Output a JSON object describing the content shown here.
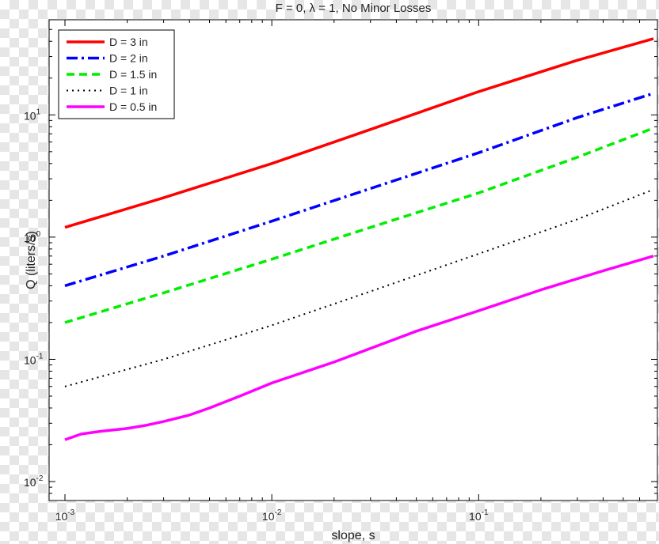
{
  "chart_data": {
    "type": "line",
    "title": "F = 0, λ = 1, No Minor Losses",
    "xlabel": "slope, s",
    "ylabel": "Q (liters/s)",
    "xscale": "log",
    "yscale": "log",
    "xlim": [
      0.001,
      0.7
    ],
    "ylim": [
      0.007,
      60
    ],
    "grid": false,
    "legend_position": "top-left",
    "x_ticks": [
      {
        "value": 0.001,
        "base": "10",
        "exp": "-3"
      },
      {
        "value": 0.01,
        "base": "10",
        "exp": "-2"
      },
      {
        "value": 0.1,
        "base": "10",
        "exp": "-1"
      }
    ],
    "y_ticks": [
      {
        "value": 0.01,
        "base": "10",
        "exp": "-2"
      },
      {
        "value": 0.1,
        "base": "10",
        "exp": "-1"
      },
      {
        "value": 1,
        "base": "10",
        "exp": "0"
      },
      {
        "value": 10,
        "base": "10",
        "exp": "1"
      }
    ],
    "series": [
      {
        "name": "D = 3 in",
        "color": "#ff0000",
        "style": "solid",
        "x": [
          0.001,
          0.003,
          0.01,
          0.03,
          0.1,
          0.3,
          0.7
        ],
        "y": [
          1.2,
          2.1,
          4.0,
          7.6,
          15.5,
          28.0,
          42.0
        ]
      },
      {
        "name": "D = 2 in",
        "color": "#0000ff",
        "style": "dashdot",
        "x": [
          0.001,
          0.003,
          0.01,
          0.03,
          0.1,
          0.3,
          0.7
        ],
        "y": [
          0.4,
          0.7,
          1.35,
          2.5,
          4.9,
          9.5,
          15.0
        ]
      },
      {
        "name": "D = 1.5 in",
        "color": "#00ee00",
        "style": "dashed",
        "x": [
          0.001,
          0.003,
          0.01,
          0.03,
          0.1,
          0.3,
          0.7
        ],
        "y": [
          0.2,
          0.35,
          0.66,
          1.2,
          2.3,
          4.5,
          7.8
        ]
      },
      {
        "name": "D = 1 in",
        "color": "#000000",
        "style": "dotted",
        "x": [
          0.001,
          0.003,
          0.01,
          0.03,
          0.1,
          0.3,
          0.7
        ],
        "y": [
          0.06,
          0.1,
          0.19,
          0.36,
          0.73,
          1.4,
          2.45
        ]
      },
      {
        "name": "D = 0.5 in",
        "color": "#ff00ff",
        "style": "solid",
        "x": [
          0.001,
          0.0012,
          0.0015,
          0.002,
          0.0025,
          0.003,
          0.004,
          0.005,
          0.007,
          0.01,
          0.02,
          0.05,
          0.1,
          0.2,
          0.4,
          0.7
        ],
        "y": [
          0.022,
          0.0245,
          0.0258,
          0.0272,
          0.029,
          0.031,
          0.035,
          0.04,
          0.05,
          0.064,
          0.095,
          0.17,
          0.25,
          0.37,
          0.53,
          0.7
        ]
      }
    ]
  }
}
